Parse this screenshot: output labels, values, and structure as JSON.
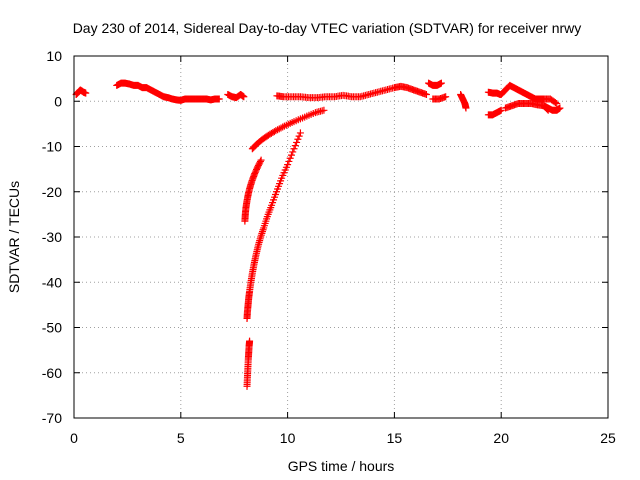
{
  "chart_data": {
    "type": "scatter",
    "title": "Day 230 of 2014, Sidereal Day-to-day VTEC variation (SDTVAR) for receiver nrwy",
    "xlabel": "GPS time / hours",
    "ylabel": "SDTVAR / TECUs",
    "xlim": [
      0,
      25
    ],
    "ylim": [
      -70,
      10
    ],
    "xticks": [
      0,
      5,
      10,
      15,
      20,
      25
    ],
    "yticks": [
      10,
      0,
      -10,
      -20,
      -30,
      -40,
      -50,
      -60,
      -70
    ],
    "grid": true,
    "marker": "+",
    "color": "#ff0000",
    "series": [
      {
        "name": "SDTVAR",
        "segments": [
          {
            "x": [
              0.1,
              0.2,
              0.3,
              0.45,
              0.55
            ],
            "y": [
              1.5,
              2.0,
              2.5,
              2.0,
              1.8
            ]
          },
          {
            "x": [
              2.0,
              2.2,
              2.4,
              2.6,
              2.8,
              3.0,
              3.2,
              3.4,
              3.6,
              3.8,
              4.0,
              4.2,
              4.4,
              4.6,
              4.8,
              5.0,
              5.2,
              5.4,
              5.6,
              5.8,
              6.0,
              6.2,
              6.4,
              6.6,
              6.8
            ],
            "y": [
              3.5,
              4.0,
              4.0,
              3.8,
              3.5,
              3.5,
              3.0,
              3.0,
              2.5,
              2.0,
              1.5,
              1.0,
              0.8,
              0.5,
              0.3,
              0.2,
              0.5,
              0.5,
              0.5,
              0.5,
              0.5,
              0.5,
              0.3,
              0.5,
              0.5
            ]
          },
          {
            "x": [
              7.2,
              7.4,
              7.6,
              7.8,
              7.95
            ],
            "y": [
              1.5,
              1.0,
              0.8,
              1.5,
              1.0
            ]
          },
          {
            "x": [
              9.5,
              9.8,
              10.2,
              10.6,
              11.0,
              11.4,
              11.8,
              12.2,
              12.6,
              13.0,
              13.4,
              13.8,
              14.2,
              14.6,
              15.0,
              15.3,
              15.6,
              15.9,
              16.2,
              16.5
            ],
            "y": [
              1.2,
              1.0,
              1.0,
              1.0,
              0.8,
              0.8,
              1.0,
              1.0,
              1.3,
              1.0,
              1.0,
              1.5,
              2.0,
              2.5,
              3.0,
              3.3,
              3.0,
              2.5,
              2.0,
              1.5
            ]
          },
          {
            "x": [
              16.6,
              16.8,
              17.0,
              17.2
            ],
            "y": [
              4.0,
              3.5,
              3.5,
              4.0
            ]
          },
          {
            "x": [
              16.8,
              17.1,
              17.4
            ],
            "y": [
              0.5,
              0.5,
              1.0
            ]
          },
          {
            "x": [
              18.1,
              18.2,
              18.3,
              18.35
            ],
            "y": [
              1.5,
              0.5,
              -0.5,
              -1.5
            ]
          },
          {
            "x": [
              19.4,
              19.6,
              19.8,
              19.95
            ],
            "y": [
              2.0,
              1.8,
              1.8,
              1.5
            ]
          },
          {
            "x": [
              19.4,
              19.6,
              19.8,
              20.0
            ],
            "y": [
              -3.0,
              -3.0,
              -2.5,
              -2.0
            ]
          },
          {
            "x": [
              20.0,
              20.2,
              20.4,
              20.6,
              20.8,
              21.0,
              21.2,
              21.4,
              21.6,
              21.8,
              22.0
            ],
            "y": [
              1.5,
              2.5,
              3.5,
              3.0,
              2.5,
              2.0,
              1.5,
              1.0,
              0.5,
              0.5,
              0.5
            ]
          },
          {
            "x": [
              20.2,
              20.5,
              20.8,
              21.1,
              21.4,
              21.7,
              22.0,
              22.2
            ],
            "y": [
              -1.5,
              -1.0,
              -0.5,
              -0.5,
              -0.5,
              -0.8,
              -1.0,
              -2.0
            ]
          },
          {
            "x": [
              22.0,
              22.2,
              22.4,
              22.6,
              22.75
            ],
            "y": [
              -1.0,
              -1.5,
              -2.0,
              -2.0,
              -1.5
            ]
          },
          {
            "x": [
              22.0,
              22.3,
              22.6
            ],
            "y": [
              0.5,
              0.5,
              -0.5
            ]
          },
          {
            "x": [
              8.1,
              8.12,
              8.14,
              8.16,
              8.18,
              8.2,
              8.22
            ],
            "y": [
              -63.0,
              -61.0,
              -59.0,
              -57.0,
              -55.5,
              -54.0,
              -53.0
            ]
          },
          {
            "x": [
              8.1,
              8.12,
              8.15,
              8.18,
              8.22,
              8.28,
              8.35,
              8.43,
              8.52,
              8.62,
              8.74,
              8.88,
              9.05,
              9.25,
              9.48,
              9.72,
              10.0,
              10.3,
              10.6
            ],
            "y": [
              -48.0,
              -46.5,
              -45.0,
              -43.5,
              -42.0,
              -40.0,
              -38.0,
              -36.0,
              -34.0,
              -32.0,
              -30.0,
              -28.0,
              -25.5,
              -23.0,
              -20.0,
              -17.0,
              -14.0,
              -10.5,
              -7.0
            ]
          },
          {
            "x": [
              8.0,
              8.02,
              8.05,
              8.1,
              8.16,
              8.24,
              8.34,
              8.46,
              8.6,
              8.76
            ],
            "y": [
              -26.5,
              -25.0,
              -23.5,
              -22.0,
              -20.5,
              -19.0,
              -17.5,
              -16.0,
              -14.5,
              -13.0
            ]
          },
          {
            "x": [
              8.35,
              8.55,
              8.8,
              9.1,
              9.45,
              9.85,
              10.3,
              10.8,
              11.3,
              11.7
            ],
            "y": [
              -10.5,
              -9.5,
              -8.5,
              -7.5,
              -6.5,
              -5.5,
              -4.5,
              -3.5,
              -2.5,
              -2.0
            ]
          }
        ]
      }
    ]
  }
}
